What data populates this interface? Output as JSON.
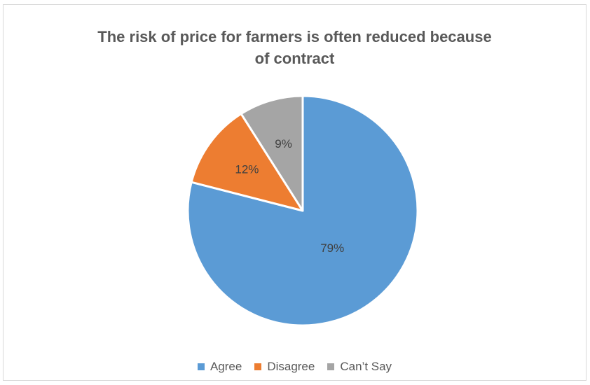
{
  "chart_data": {
    "type": "pie",
    "title_lines": [
      "The risk of price for farmers is often reduced because",
      "of contract"
    ],
    "categories": [
      "Agree",
      "Disagree",
      "Can’t Say"
    ],
    "values": [
      79,
      12,
      9
    ],
    "labels": [
      "79%",
      "12%",
      "9%"
    ],
    "colors": [
      "#5b9bd5",
      "#ed7d31",
      "#a5a5a5"
    ],
    "start": "12 o'clock",
    "direction": "clockwise",
    "legend_position": "bottom"
  }
}
